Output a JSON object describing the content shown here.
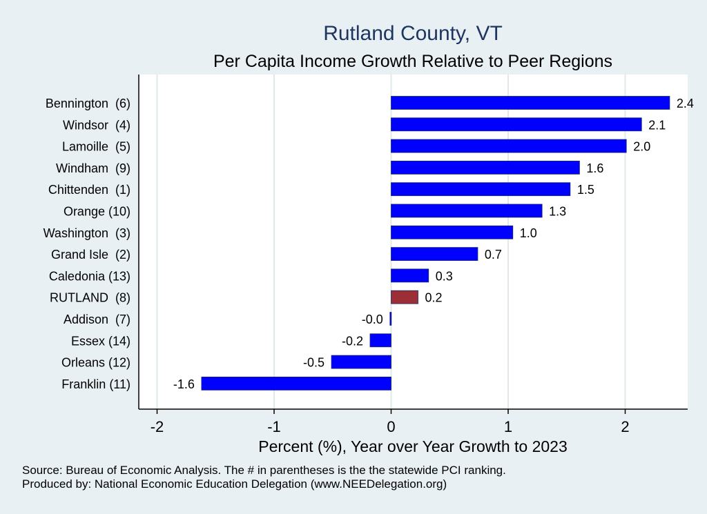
{
  "chart_data": {
    "type": "bar",
    "orientation": "horizontal",
    "title": "Rutland County, VT",
    "subtitle": "Per Capita Income Growth Relative to Peer Regions",
    "xlabel": "Percent (%), Year over Year Growth to 2023",
    "ylabel": "",
    "xlim": [
      -2.2,
      2.55
    ],
    "xticks": [
      -2,
      -1,
      0,
      1,
      2
    ],
    "grid": true,
    "categories": [
      "Bennington  (6)",
      "Windsor  (4)",
      "Lamoille  (5)",
      "Windham  (9)",
      "Chittenden  (1)",
      "Orange (10)",
      "Washington  (3)",
      "Grand Isle  (2)",
      "Caledonia (13)",
      "RUTLAND  (8)",
      "Addison  (7)",
      "Essex (14)",
      "Orleans (12)",
      "Franklin (11)"
    ],
    "values": [
      2.38,
      2.14,
      2.01,
      1.61,
      1.53,
      1.29,
      1.04,
      0.74,
      0.32,
      0.23,
      -0.01,
      -0.18,
      -0.51,
      -1.62
    ],
    "value_labels": [
      "2.4",
      "2.1",
      "2.0",
      "1.6",
      "1.5",
      "1.3",
      "1.0",
      "0.7",
      "0.3",
      "0.2",
      "-0.0",
      "-0.2",
      "-0.5",
      "-1.6"
    ],
    "highlight_category": "RUTLAND  (8)",
    "colors": {
      "bar": "#0000ff",
      "highlight": "#9c2f36",
      "title": "#1f3561",
      "background": "#e9f0f3",
      "grid": "#dfe8eb"
    }
  },
  "footer": {
    "source": "Source: Bureau of Economic Analysis. The # in parentheses is the the statewide PCI ranking.",
    "produced": "Produced by: National Economic Education Delegation (www.NEEDelegation.org)"
  }
}
